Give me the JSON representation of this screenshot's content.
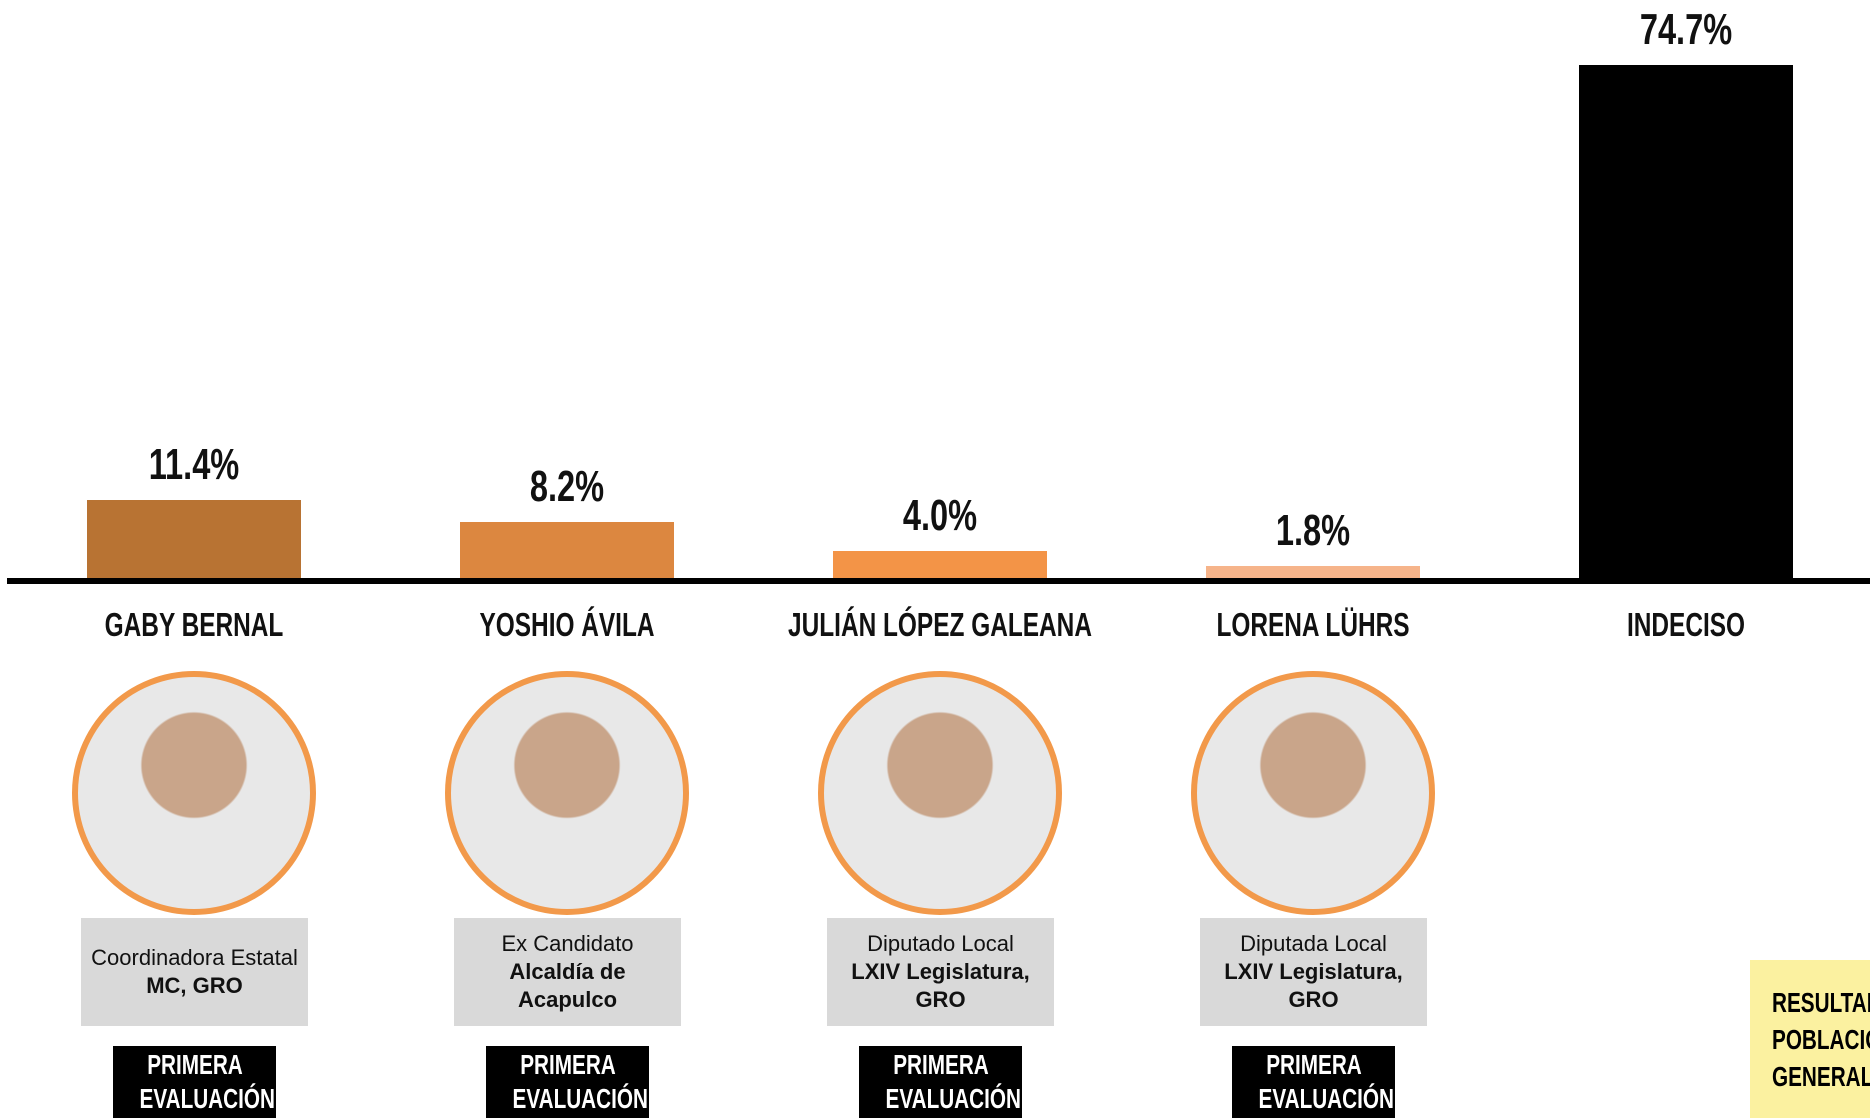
{
  "chart_data": {
    "type": "bar",
    "categories": [
      "GABY BERNAL",
      "YOSHIO ÁVILA",
      "JULIÁN LÓPEZ GALEANA",
      "LORENA LÜHRS",
      "INDECISO"
    ],
    "values": [
      11.4,
      8.2,
      4.0,
      1.8,
      74.7
    ],
    "value_labels": [
      "11.4%",
      "8.2%",
      "4.0%",
      "1.8%",
      "74.7%"
    ],
    "colors": [
      "#b87333",
      "#dc8740",
      "#f39447",
      "#f6b48a",
      "#000000"
    ],
    "ylim": [
      0,
      75
    ]
  },
  "candidates": [
    {
      "role": "Coordinadora Estatal",
      "office": "MC, GRO"
    },
    {
      "role": "Ex Candidato",
      "office": "Alcaldía de Acapulco"
    },
    {
      "role": "Diputado Local",
      "office": "LXIV Legislatura, GRO"
    },
    {
      "role": "Diputada Local",
      "office": "LXIV Legislatura, GRO"
    }
  ],
  "badges": [
    "PRIMERA EVALUACIÓN",
    "PRIMERA EVALUACIÓN",
    "PRIMERA EVALUACIÓN",
    "PRIMERA EVALUACIÓN"
  ],
  "note": "RESULTADO POBLACIÓN GENERAL"
}
